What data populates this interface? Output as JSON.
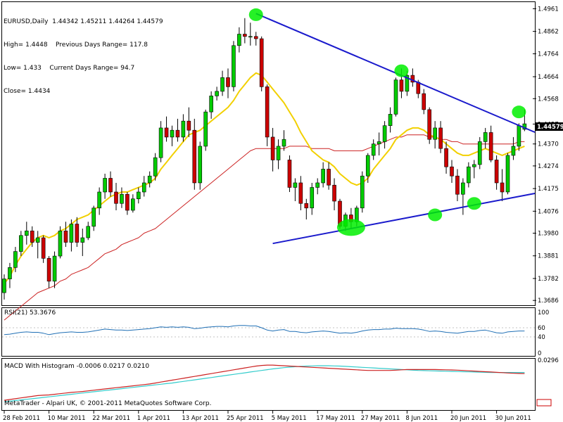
{
  "info": {
    "symbol_line": "EURUSD,Daily  1.44342 1.45211 1.44264 1.44579",
    "high_line": "High= 1.4448    Previous Days Range= 117.8",
    "low_line": "Low= 1.433    Current Days Range= 94.7",
    "close_line": "Close= 1.4434"
  },
  "current_price": "1.44579",
  "rsi_label": "RSI(21) 53.3676",
  "macd_label": "MACD With Histogram -0.0006 0.0217 0.0210",
  "footer": "MetaTrader - Alpari UK, © 2001-2011 MetaQuotes Software Corp.",
  "colors": {
    "bull": "#00cc00",
    "bear": "#cc0000",
    "ma_fast": "#f2d000",
    "ma_slow": "#cc2222",
    "trendline": "#1a1acc",
    "highlight": "#00ee00",
    "rsi": "#1f6fb5",
    "macd_signal": "#33cccc",
    "macd_line": "#cc2222"
  },
  "chart_data": [
    {
      "type": "candlestick",
      "title": "EURUSD,Daily",
      "price_ticks": [
        "1.4961",
        "1.4862",
        "1.4764",
        "1.4664",
        "1.4568",
        "1.4457",
        "1.4370",
        "1.4274",
        "1.4175",
        "1.4076",
        "1.3980",
        "1.3881",
        "1.3782",
        "1.3686"
      ],
      "ylim": [
        1.3665,
        1.499
      ],
      "date_labels": [
        "28 Feb 2011",
        "10 Mar 2011",
        "22 Mar 2011",
        "1 Apr 2011",
        "13 Apr 2011",
        "25 Apr 2011",
        "5 May 2011",
        "17 May 2011",
        "27 May 2011",
        "8 Jun 2011",
        "20 Jun 2011",
        "30 Jun 2011"
      ],
      "candles": [
        [
          1.372,
          1.38,
          1.369,
          1.378
        ],
        [
          1.378,
          1.385,
          1.374,
          1.383
        ],
        [
          1.383,
          1.392,
          1.381,
          1.39
        ],
        [
          1.39,
          1.399,
          1.388,
          1.397
        ],
        [
          1.397,
          1.403,
          1.393,
          1.399
        ],
        [
          1.399,
          1.401,
          1.392,
          1.394
        ],
        [
          1.394,
          1.399,
          1.387,
          1.396
        ],
        [
          1.396,
          1.397,
          1.385,
          1.387
        ],
        [
          1.387,
          1.388,
          1.374,
          1.377
        ],
        [
          1.377,
          1.39,
          1.374,
          1.388
        ],
        [
          1.388,
          1.401,
          1.387,
          1.399
        ],
        [
          1.399,
          1.403,
          1.392,
          1.394
        ],
        [
          1.394,
          1.404,
          1.39,
          1.402
        ],
        [
          1.402,
          1.405,
          1.392,
          1.394
        ],
        [
          1.394,
          1.4,
          1.388,
          1.396
        ],
        [
          1.396,
          1.403,
          1.395,
          1.401
        ],
        [
          1.401,
          1.41,
          1.399,
          1.409
        ],
        [
          1.409,
          1.418,
          1.406,
          1.416
        ],
        [
          1.416,
          1.424,
          1.413,
          1.422
        ],
        [
          1.422,
          1.425,
          1.414,
          1.416
        ],
        [
          1.416,
          1.42,
          1.408,
          1.411
        ],
        [
          1.411,
          1.418,
          1.409,
          1.415
        ],
        [
          1.415,
          1.416,
          1.406,
          1.408
        ],
        [
          1.408,
          1.415,
          1.407,
          1.413
        ],
        [
          1.413,
          1.418,
          1.411,
          1.416
        ],
        [
          1.416,
          1.423,
          1.414,
          1.42
        ],
        [
          1.42,
          1.425,
          1.418,
          1.423
        ],
        [
          1.423,
          1.433,
          1.421,
          1.431
        ],
        [
          1.431,
          1.447,
          1.429,
          1.444
        ],
        [
          1.444,
          1.449,
          1.438,
          1.44
        ],
        [
          1.44,
          1.445,
          1.436,
          1.443
        ],
        [
          1.443,
          1.448,
          1.438,
          1.44
        ],
        [
          1.44,
          1.45,
          1.438,
          1.447
        ],
        [
          1.447,
          1.453,
          1.44,
          1.443
        ],
        [
          1.443,
          1.448,
          1.417,
          1.42
        ],
        [
          1.42,
          1.438,
          1.417,
          1.436
        ],
        [
          1.436,
          1.452,
          1.434,
          1.451
        ],
        [
          1.451,
          1.46,
          1.448,
          1.458
        ],
        [
          1.458,
          1.462,
          1.456,
          1.46
        ],
        [
          1.46,
          1.469,
          1.458,
          1.466
        ],
        [
          1.466,
          1.47,
          1.457,
          1.462
        ],
        [
          1.462,
          1.482,
          1.46,
          1.48
        ],
        [
          1.48,
          1.488,
          1.477,
          1.485
        ],
        [
          1.485,
          1.492,
          1.481,
          1.484
        ],
        [
          1.484,
          1.49,
          1.48,
          1.484
        ],
        [
          1.484,
          1.486,
          1.48,
          1.483
        ],
        [
          1.483,
          1.484,
          1.46,
          1.462
        ],
        [
          1.462,
          1.463,
          1.436,
          1.44
        ],
        [
          1.44,
          1.444,
          1.425,
          1.43
        ],
        [
          1.43,
          1.439,
          1.426,
          1.436
        ],
        [
          1.436,
          1.443,
          1.434,
          1.439
        ],
        [
          1.43,
          1.432,
          1.416,
          1.418
        ],
        [
          1.418,
          1.422,
          1.412,
          1.42
        ],
        [
          1.42,
          1.423,
          1.408,
          1.411
        ],
        [
          1.411,
          1.413,
          1.404,
          1.409
        ],
        [
          1.409,
          1.42,
          1.406,
          1.418
        ],
        [
          1.418,
          1.422,
          1.415,
          1.42
        ],
        [
          1.42,
          1.429,
          1.418,
          1.426
        ],
        [
          1.426,
          1.429,
          1.417,
          1.419
        ],
        [
          1.419,
          1.422,
          1.408,
          1.412
        ],
        [
          1.412,
          1.413,
          1.4,
          1.401
        ],
        [
          1.401,
          1.407,
          1.399,
          1.406
        ],
        [
          1.406,
          1.409,
          1.4,
          1.403
        ],
        [
          1.403,
          1.41,
          1.401,
          1.409
        ],
        [
          1.409,
          1.425,
          1.407,
          1.423
        ],
        [
          1.423,
          1.433,
          1.42,
          1.432
        ],
        [
          1.432,
          1.439,
          1.43,
          1.437
        ],
        [
          1.437,
          1.442,
          1.432,
          1.438
        ],
        [
          1.438,
          1.447,
          1.435,
          1.445
        ],
        [
          1.445,
          1.453,
          1.442,
          1.45
        ],
        [
          1.45,
          1.466,
          1.449,
          1.465
        ],
        [
          1.465,
          1.47,
          1.457,
          1.46
        ],
        [
          1.46,
          1.469,
          1.458,
          1.467
        ],
        [
          1.467,
          1.47,
          1.462,
          1.464
        ],
        [
          1.464,
          1.465,
          1.457,
          1.459
        ],
        [
          1.459,
          1.461,
          1.45,
          1.452
        ],
        [
          1.452,
          1.453,
          1.437,
          1.439
        ],
        [
          1.439,
          1.447,
          1.435,
          1.444
        ],
        [
          1.444,
          1.447,
          1.433,
          1.435
        ],
        [
          1.435,
          1.438,
          1.424,
          1.427
        ],
        [
          1.427,
          1.43,
          1.42,
          1.423
        ],
        [
          1.423,
          1.426,
          1.412,
          1.415
        ],
        [
          1.415,
          1.422,
          1.406,
          1.42
        ],
        [
          1.42,
          1.429,
          1.418,
          1.427
        ],
        [
          1.427,
          1.43,
          1.422,
          1.428
        ],
        [
          1.428,
          1.44,
          1.426,
          1.438
        ],
        [
          1.438,
          1.444,
          1.435,
          1.442
        ],
        [
          1.442,
          1.445,
          1.429,
          1.43
        ],
        [
          1.43,
          1.432,
          1.417,
          1.42
        ],
        [
          1.42,
          1.426,
          1.412,
          1.416
        ],
        [
          1.416,
          1.433,
          1.415,
          1.432
        ],
        [
          1.432,
          1.44,
          1.43,
          1.436
        ],
        [
          1.436,
          1.446,
          1.434,
          1.445
        ],
        [
          1.4434,
          1.4521,
          1.4426,
          1.4458
        ]
      ],
      "ma_fast": [
        1.376,
        1.379,
        1.384,
        1.388,
        1.391,
        1.394,
        1.396,
        1.397,
        1.396,
        1.397,
        1.399,
        1.4,
        1.402,
        1.404,
        1.405,
        1.406,
        1.408,
        1.41,
        1.412,
        1.414,
        1.415,
        1.416,
        1.416,
        1.417,
        1.418,
        1.419,
        1.42,
        1.422,
        1.426,
        1.429,
        1.432,
        1.435,
        1.438,
        1.441,
        1.442,
        1.443,
        1.445,
        1.447,
        1.449,
        1.451,
        1.453,
        1.456,
        1.46,
        1.463,
        1.466,
        1.468,
        1.467,
        1.464,
        1.461,
        1.458,
        1.455,
        1.451,
        1.447,
        1.442,
        1.438,
        1.434,
        1.432,
        1.43,
        1.429,
        1.427,
        1.424,
        1.422,
        1.42,
        1.419,
        1.42,
        1.422,
        1.426,
        1.429,
        1.432,
        1.435,
        1.439,
        1.441,
        1.443,
        1.444,
        1.444,
        1.443,
        1.441,
        1.44,
        1.439,
        1.437,
        1.435,
        1.433,
        1.432,
        1.432,
        1.433,
        1.434,
        1.435,
        1.434,
        1.433,
        1.432,
        1.433,
        1.434,
        1.435,
        1.436
      ],
      "ma_slow": [
        1.36,
        1.362,
        1.364,
        1.366,
        1.368,
        1.37,
        1.372,
        1.373,
        1.374,
        1.375,
        1.377,
        1.378,
        1.38,
        1.381,
        1.382,
        1.383,
        1.385,
        1.387,
        1.389,
        1.39,
        1.391,
        1.393,
        1.394,
        1.395,
        1.396,
        1.398,
        1.399,
        1.4,
        1.402,
        1.404,
        1.406,
        1.408,
        1.41,
        1.412,
        1.414,
        1.416,
        1.418,
        1.42,
        1.422,
        1.424,
        1.426,
        1.428,
        1.43,
        1.432,
        1.434,
        1.435,
        1.435,
        1.435,
        1.435,
        1.435,
        1.435,
        1.436,
        1.436,
        1.436,
        1.436,
        1.435,
        1.435,
        1.435,
        1.435,
        1.434,
        1.434,
        1.434,
        1.434,
        1.434,
        1.434,
        1.435,
        1.436,
        1.437,
        1.438,
        1.439,
        1.44,
        1.44,
        1.441,
        1.441,
        1.441,
        1.441,
        1.44,
        1.44,
        1.439,
        1.439,
        1.438,
        1.438,
        1.437,
        1.437,
        1.437,
        1.437,
        1.437,
        1.437,
        1.437,
        1.437,
        1.437,
        1.437,
        1.438,
        1.438
      ],
      "trendlines": [
        {
          "from": [
            45,
            1.494
          ],
          "to": [
            94,
            1.443
          ]
        },
        {
          "from": [
            48,
            1.3935
          ],
          "to": [
            94,
            1.415
          ]
        }
      ],
      "highlights": [
        {
          "index": 45,
          "price": 1.4935
        },
        {
          "index": 71,
          "price": 1.469
        },
        {
          "index": 92,
          "price": 1.451
        },
        {
          "index": 62,
          "price": 1.4005
        },
        {
          "index": 77,
          "price": 1.406
        },
        {
          "index": 84,
          "price": 1.411
        }
      ]
    },
    {
      "type": "line",
      "title": "RSI(21) 53.3676",
      "y_ticks": [
        "100",
        "60",
        "40",
        "0"
      ],
      "ylim": [
        0,
        100
      ],
      "values": [
        45,
        46,
        48,
        50,
        51,
        50,
        50,
        48,
        45,
        47,
        49,
        50,
        51,
        50,
        50,
        51,
        53,
        55,
        57,
        56,
        55,
        55,
        54,
        55,
        56,
        57,
        58,
        60,
        62,
        61,
        62,
        61,
        62,
        61,
        58,
        59,
        61,
        62,
        63,
        63,
        62,
        64,
        65,
        65,
        64,
        64,
        60,
        55,
        53,
        55,
        56,
        52,
        52,
        50,
        49,
        51,
        52,
        53,
        52,
        50,
        48,
        49,
        48,
        50,
        53,
        55,
        56,
        56,
        57,
        57,
        59,
        58,
        58,
        58,
        57,
        55,
        52,
        53,
        52,
        50,
        49,
        48,
        50,
        52,
        52,
        54,
        55,
        52,
        49,
        48,
        51,
        52,
        53,
        53
      ]
    },
    {
      "type": "line",
      "title": "MACD With Histogram -0.0006 0.0217 0.0210",
      "y_ticks": [
        "0.0296",
        "0.00"
      ],
      "ylim": [
        0,
        0.0296
      ],
      "macd": [
        0.004,
        0.0045,
        0.005,
        0.0055,
        0.006,
        0.0065,
        0.007,
        0.0072,
        0.0074,
        0.0078,
        0.0082,
        0.0086,
        0.009,
        0.0093,
        0.0096,
        0.01,
        0.0104,
        0.0108,
        0.0112,
        0.0116,
        0.012,
        0.0124,
        0.0128,
        0.0132,
        0.0136,
        0.014,
        0.0144,
        0.015,
        0.0156,
        0.0162,
        0.0168,
        0.0174,
        0.018,
        0.0186,
        0.0192,
        0.0198,
        0.0204,
        0.021,
        0.0216,
        0.0222,
        0.0228,
        0.0234,
        0.024,
        0.0246,
        0.0252,
        0.0258,
        0.0262,
        0.0264,
        0.0264,
        0.0262,
        0.026,
        0.0258,
        0.0256,
        0.0254,
        0.0252,
        0.025,
        0.0248,
        0.0246,
        0.0244,
        0.0242,
        0.024,
        0.0238,
        0.0236,
        0.0234,
        0.0232,
        0.023,
        0.023,
        0.023,
        0.023,
        0.023,
        0.0232,
        0.0234,
        0.0236,
        0.0236,
        0.0236,
        0.0236,
        0.0236,
        0.0236,
        0.0235,
        0.0234,
        0.0233,
        0.0232,
        0.023,
        0.0228,
        0.0226,
        0.0224,
        0.0222,
        0.022,
        0.0218,
        0.0216,
        0.0214,
        0.0212,
        0.0211,
        0.021
      ],
      "signal": [
        0.003,
        0.0034,
        0.0038,
        0.0042,
        0.0046,
        0.005,
        0.0054,
        0.0058,
        0.0062,
        0.0066,
        0.007,
        0.0074,
        0.0078,
        0.0082,
        0.0086,
        0.009,
        0.0094,
        0.0098,
        0.0102,
        0.0106,
        0.011,
        0.0114,
        0.0118,
        0.0122,
        0.0126,
        0.013,
        0.0134,
        0.0138,
        0.0142,
        0.0146,
        0.015,
        0.0155,
        0.016,
        0.0165,
        0.017,
        0.0175,
        0.018,
        0.0185,
        0.019,
        0.0195,
        0.02,
        0.0205,
        0.021,
        0.0215,
        0.022,
        0.0225,
        0.023,
        0.0235,
        0.024,
        0.0244,
        0.0248,
        0.0251,
        0.0254,
        0.0256,
        0.0258,
        0.0259,
        0.026,
        0.026,
        0.026,
        0.0259,
        0.0258,
        0.0256,
        0.0254,
        0.0252,
        0.025,
        0.0248,
        0.0246,
        0.0244,
        0.0242,
        0.024,
        0.0238,
        0.0236,
        0.0234,
        0.0232,
        0.023,
        0.0229,
        0.0228,
        0.0227,
        0.0226,
        0.0225,
        0.0224,
        0.0223,
        0.0222,
        0.0221,
        0.022,
        0.0219,
        0.0218,
        0.0217,
        0.0217,
        0.0217,
        0.0217,
        0.0217,
        0.0217,
        0.0217
      ]
    }
  ]
}
